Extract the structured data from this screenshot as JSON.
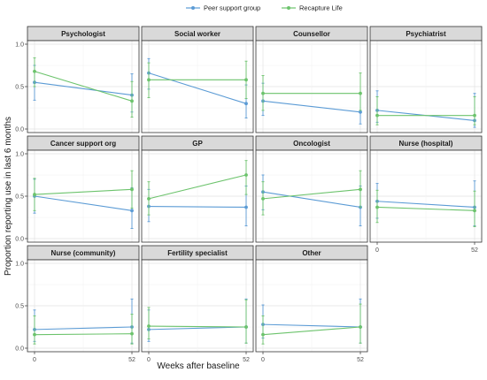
{
  "chart_data": {
    "type": "line",
    "xlabel": "Weeks after baseline",
    "ylabel": "Proportion reporting use in last 6 months",
    "x": [
      0,
      52
    ],
    "x_ticks": [
      "0",
      "52"
    ],
    "ylim": [
      0,
      1
    ],
    "y_ticks": [
      "0.0",
      "0.5",
      "1.0"
    ],
    "grid": true,
    "legend_position": "top",
    "colors": {
      "Peer support group": "#5b9bd5",
      "Recapture Life": "#6cc36c"
    },
    "legend": [
      "Peer support group",
      "Recapture Life"
    ],
    "panels": [
      {
        "title": "Psychologist",
        "series": [
          {
            "name": "Peer support group",
            "y": [
              0.55,
              0.4
            ],
            "lower": [
              0.34,
              0.2
            ],
            "upper": [
              0.75,
              0.65
            ]
          },
          {
            "name": "Recapture Life",
            "y": [
              0.68,
              0.33
            ],
            "lower": [
              0.5,
              0.14
            ],
            "upper": [
              0.84,
              0.56
            ]
          }
        ]
      },
      {
        "title": "Social worker",
        "series": [
          {
            "name": "Peer support group",
            "y": [
              0.66,
              0.3
            ],
            "lower": [
              0.47,
              0.13
            ],
            "upper": [
              0.83,
              0.52
            ]
          },
          {
            "name": "Recapture Life",
            "y": [
              0.58,
              0.58
            ],
            "lower": [
              0.37,
              0.36
            ],
            "upper": [
              0.78,
              0.8
            ]
          }
        ]
      },
      {
        "title": "Counsellor",
        "series": [
          {
            "name": "Peer support group",
            "y": [
              0.33,
              0.2
            ],
            "lower": [
              0.16,
              0.06
            ],
            "upper": [
              0.54,
              0.42
            ]
          },
          {
            "name": "Recapture Life",
            "y": [
              0.42,
              0.42
            ],
            "lower": [
              0.22,
              0.22
            ],
            "upper": [
              0.63,
              0.66
            ]
          }
        ]
      },
      {
        "title": "Psychiatrist",
        "series": [
          {
            "name": "Peer support group",
            "y": [
              0.22,
              0.1
            ],
            "lower": [
              0.08,
              0.02
            ],
            "upper": [
              0.45,
              0.42
            ]
          },
          {
            "name": "Recapture Life",
            "y": [
              0.16,
              0.16
            ],
            "lower": [
              0.05,
              0.05
            ],
            "upper": [
              0.38,
              0.38
            ]
          }
        ]
      },
      {
        "title": "Cancer support org",
        "series": [
          {
            "name": "Peer support group",
            "y": [
              0.5,
              0.33
            ],
            "lower": [
              0.3,
              0.12
            ],
            "upper": [
              0.7,
              0.6
            ]
          },
          {
            "name": "Recapture Life",
            "y": [
              0.52,
              0.58
            ],
            "lower": [
              0.33,
              0.36
            ],
            "upper": [
              0.71,
              0.8
            ]
          }
        ]
      },
      {
        "title": "GP",
        "series": [
          {
            "name": "Peer support group",
            "y": [
              0.38,
              0.37
            ],
            "lower": [
              0.2,
              0.15
            ],
            "upper": [
              0.58,
              0.62
            ]
          },
          {
            "name": "Recapture Life",
            "y": [
              0.47,
              0.75
            ],
            "lower": [
              0.28,
              0.52
            ],
            "upper": [
              0.67,
              0.92
            ]
          }
        ]
      },
      {
        "title": "Oncologist",
        "series": [
          {
            "name": "Peer support group",
            "y": [
              0.55,
              0.37
            ],
            "lower": [
              0.34,
              0.15
            ],
            "upper": [
              0.75,
              0.62
            ]
          },
          {
            "name": "Recapture Life",
            "y": [
              0.47,
              0.58
            ],
            "lower": [
              0.28,
              0.37
            ],
            "upper": [
              0.67,
              0.8
            ]
          }
        ]
      },
      {
        "title": "Nurse (hospital)",
        "series": [
          {
            "name": "Peer support group",
            "y": [
              0.44,
              0.37
            ],
            "lower": [
              0.24,
              0.15
            ],
            "upper": [
              0.65,
              0.68
            ]
          },
          {
            "name": "Recapture Life",
            "y": [
              0.37,
              0.33
            ],
            "lower": [
              0.19,
              0.14
            ],
            "upper": [
              0.57,
              0.56
            ]
          }
        ]
      },
      {
        "title": "Nurse (community)",
        "series": [
          {
            "name": "Peer support group",
            "y": [
              0.22,
              0.25
            ],
            "lower": [
              0.08,
              0.06
            ],
            "upper": [
              0.45,
              0.58
            ]
          },
          {
            "name": "Recapture Life",
            "y": [
              0.16,
              0.17
            ],
            "lower": [
              0.05,
              0.05
            ],
            "upper": [
              0.38,
              0.4
            ]
          }
        ]
      },
      {
        "title": "Fertility specialist",
        "series": [
          {
            "name": "Peer support group",
            "y": [
              0.22,
              0.25
            ],
            "lower": [
              0.08,
              0.06
            ],
            "upper": [
              0.45,
              0.58
            ]
          },
          {
            "name": "Recapture Life",
            "y": [
              0.26,
              0.25
            ],
            "lower": [
              0.11,
              0.06
            ],
            "upper": [
              0.48,
              0.57
            ]
          }
        ]
      },
      {
        "title": "Other",
        "series": [
          {
            "name": "Peer support group",
            "y": [
              0.28,
              0.25
            ],
            "lower": [
              0.12,
              0.06
            ],
            "upper": [
              0.51,
              0.58
            ]
          },
          {
            "name": "Recapture Life",
            "y": [
              0.16,
              0.25
            ],
            "lower": [
              0.05,
              0.06
            ],
            "upper": [
              0.38,
              0.52
            ]
          }
        ]
      }
    ]
  }
}
